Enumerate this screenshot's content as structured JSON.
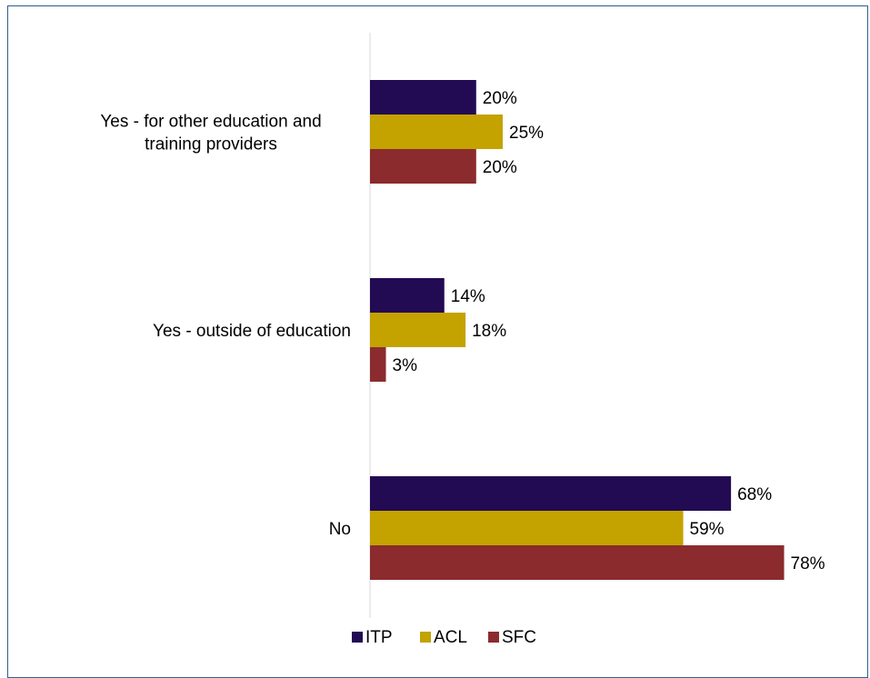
{
  "chart_data": {
    "type": "bar",
    "orientation": "horizontal",
    "categories": [
      "Yes - for other education and training providers",
      "Yes - outside of education",
      "No"
    ],
    "category_lines": [
      [
        "Yes - for other education and",
        "training providers"
      ],
      [
        "Yes - outside of education"
      ],
      [
        "No"
      ]
    ],
    "series": [
      {
        "name": "ITP",
        "color": "#220b53",
        "values": [
          20,
          14,
          68
        ],
        "labels": [
          "20%",
          "14%",
          "68%"
        ]
      },
      {
        "name": "ACL",
        "color": "#c4a200",
        "values": [
          25,
          18,
          59
        ],
        "labels": [
          "25%",
          "18%",
          "59%"
        ]
      },
      {
        "name": "SFC",
        "color": "#8b2b2e",
        "values": [
          20,
          3,
          78
        ],
        "labels": [
          "20%",
          "3%",
          "78%"
        ]
      }
    ],
    "value_suffix": "%",
    "xlim": [
      0,
      100
    ],
    "grid": false,
    "legend_position": "bottom"
  }
}
